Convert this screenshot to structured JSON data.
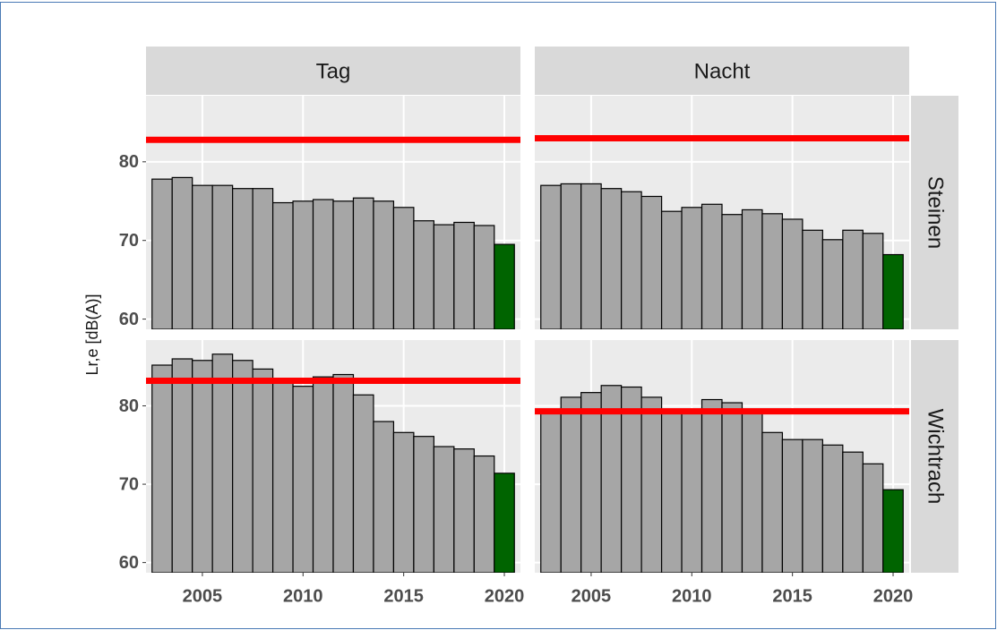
{
  "facets": {
    "columns": [
      "Tag",
      "Nacht"
    ],
    "rows": [
      "Steinen",
      "Wichtrach"
    ]
  },
  "ylabel": "Lr,e [dB(A)]",
  "chart_data": [
    {
      "type": "bar",
      "column": 0,
      "row": 0,
      "x": [
        2003,
        2004,
        2005,
        2006,
        2007,
        2008,
        2009,
        2010,
        2011,
        2012,
        2013,
        2014,
        2015,
        2016,
        2017,
        2018,
        2019,
        2020
      ],
      "values": [
        77.8,
        78.0,
        77.0,
        77.0,
        76.6,
        76.6,
        74.8,
        75.0,
        75.2,
        75.0,
        75.4,
        75.0,
        74.2,
        72.5,
        72.0,
        72.3,
        71.9,
        69.5
      ],
      "color": "#a6a6a6",
      "highlight_color": "#006400",
      "hline": {
        "value": 82.8,
        "color": "#ff0000"
      },
      "xlim": [
        2002.2,
        2020.8
      ],
      "xticks": [
        2005,
        2010,
        2015,
        2020
      ],
      "ylim": [
        58.7,
        88.4
      ],
      "yticks": [
        60,
        70,
        80
      ],
      "grid": true
    },
    {
      "type": "bar",
      "column": 1,
      "row": 0,
      "x": [
        2003,
        2004,
        2005,
        2006,
        2007,
        2008,
        2009,
        2010,
        2011,
        2012,
        2013,
        2014,
        2015,
        2016,
        2017,
        2018,
        2019,
        2020
      ],
      "values": [
        77.0,
        77.2,
        77.2,
        76.6,
        76.2,
        75.6,
        73.7,
        74.2,
        74.6,
        73.3,
        73.9,
        73.4,
        72.7,
        71.3,
        70.1,
        71.3,
        70.9,
        68.2
      ],
      "color": "#a6a6a6",
      "highlight_color": "#006400",
      "hline": {
        "value": 83.0,
        "color": "#ff0000"
      },
      "xlim": [
        2002.2,
        2020.8
      ],
      "xticks": [
        2005,
        2010,
        2015,
        2020
      ],
      "ylim": [
        58.7,
        88.4
      ],
      "yticks": [
        60,
        70,
        80
      ],
      "grid": true
    },
    {
      "type": "bar",
      "column": 0,
      "row": 1,
      "x": [
        2003,
        2004,
        2005,
        2006,
        2007,
        2008,
        2009,
        2010,
        2011,
        2012,
        2013,
        2014,
        2015,
        2016,
        2017,
        2018,
        2019,
        2020
      ],
      "values": [
        85.2,
        86.0,
        85.8,
        86.6,
        85.8,
        84.7,
        83.3,
        82.5,
        83.7,
        84.0,
        81.4,
        78.0,
        76.6,
        76.1,
        74.8,
        74.5,
        73.6,
        71.4
      ],
      "color": "#a6a6a6",
      "highlight_color": "#006400",
      "hline": {
        "value": 83.2,
        "color": "#ff0000"
      },
      "xlim": [
        2002.2,
        2020.8
      ],
      "xticks": [
        2005,
        2010,
        2015,
        2020
      ],
      "ylim": [
        58.7,
        88.4
      ],
      "yticks": [
        60,
        70,
        80
      ],
      "grid": true
    },
    {
      "type": "bar",
      "column": 1,
      "row": 1,
      "x": [
        2003,
        2004,
        2005,
        2006,
        2007,
        2008,
        2009,
        2010,
        2011,
        2012,
        2013,
        2014,
        2015,
        2016,
        2017,
        2018,
        2019,
        2020
      ],
      "values": [
        79.3,
        81.1,
        81.7,
        82.6,
        82.4,
        81.1,
        79.5,
        79.3,
        80.8,
        80.4,
        79.5,
        76.6,
        75.7,
        75.7,
        75.0,
        74.1,
        72.6,
        69.3
      ],
      "color": "#a6a6a6",
      "highlight_color": "#006400",
      "hline": {
        "value": 79.3,
        "color": "#ff0000"
      },
      "xlim": [
        2002.2,
        2020.8
      ],
      "xticks": [
        2005,
        2010,
        2015,
        2020
      ],
      "ylim": [
        58.7,
        88.4
      ],
      "yticks": [
        60,
        70,
        80
      ],
      "grid": true
    }
  ]
}
